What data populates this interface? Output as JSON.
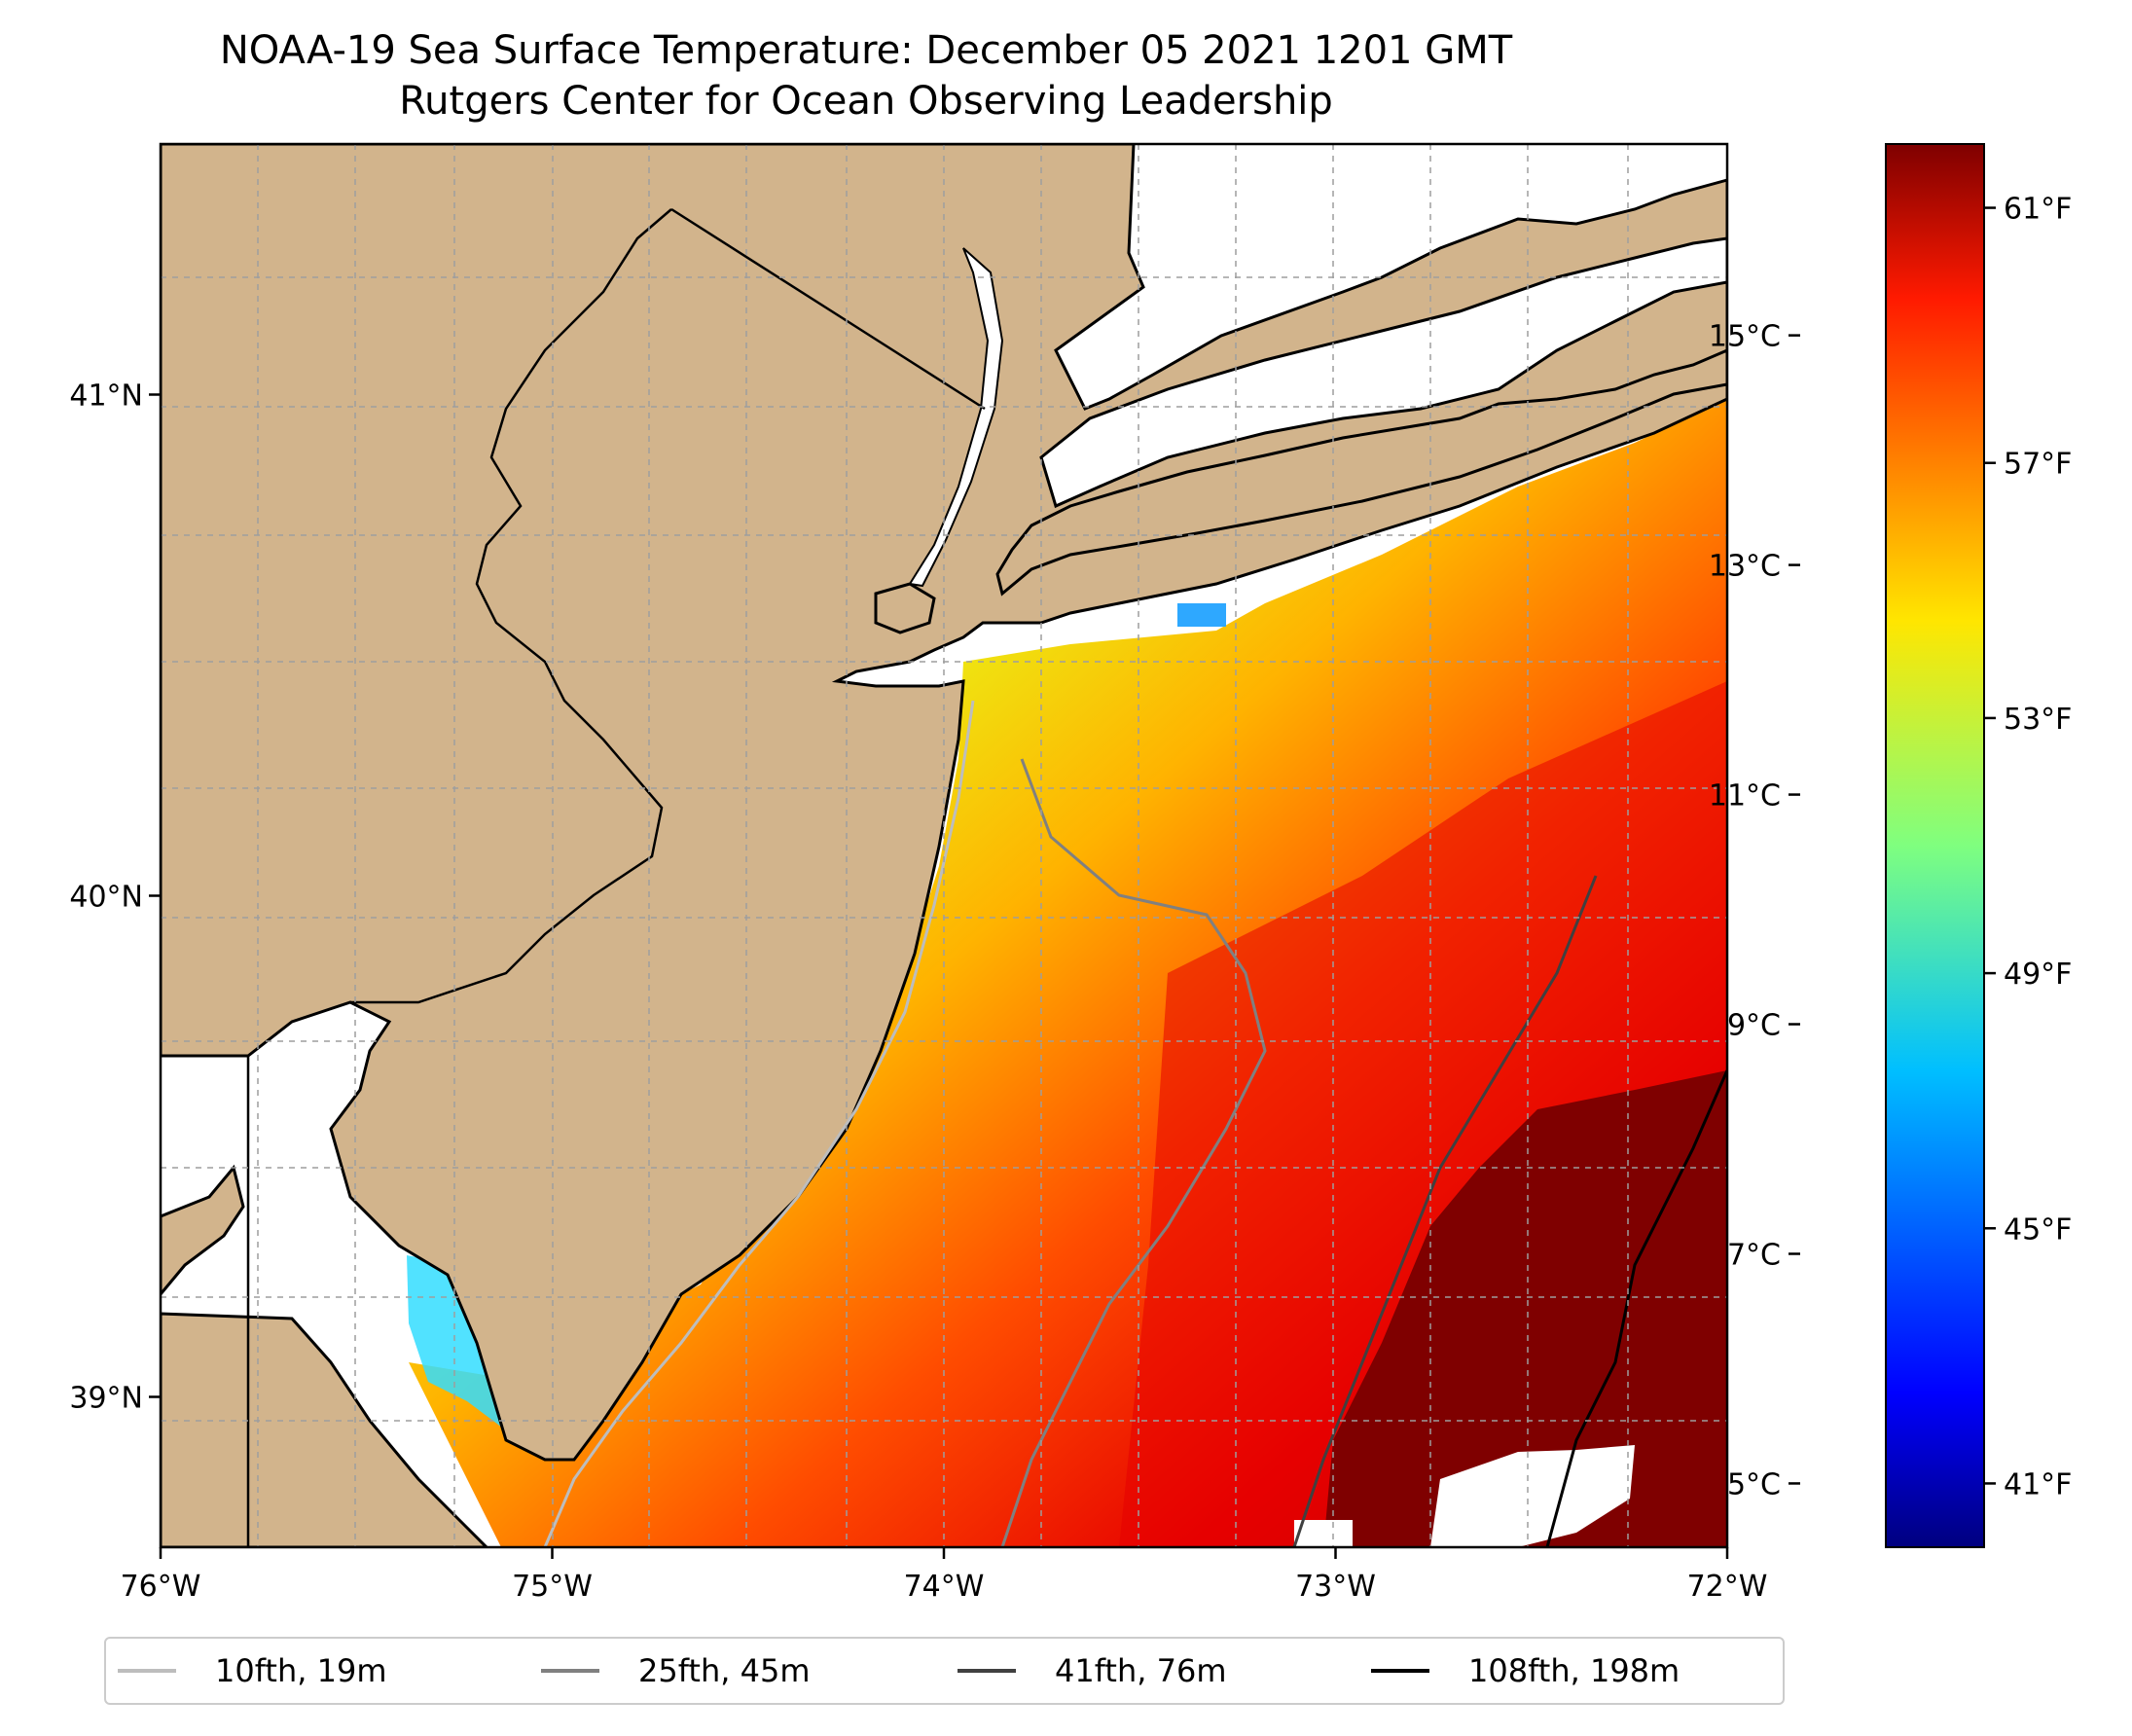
{
  "title_line1": "NOAA-19 Sea Surface Temperature: December 05 2021 1201 GMT",
  "title_line2": "Rutgers Center for Ocean Observing Leadership",
  "map": {
    "lon_range": [
      -76,
      -72
    ],
    "lat_range": [
      38.7,
      41.5
    ],
    "x_ticks": [
      {
        "value": -76,
        "label": "76°W"
      },
      {
        "value": -75,
        "label": "75°W"
      },
      {
        "value": -74,
        "label": "74°W"
      },
      {
        "value": -73,
        "label": "73°W"
      },
      {
        "value": -72,
        "label": "72°W"
      }
    ],
    "y_ticks": [
      {
        "value": 41,
        "label": "41°N"
      },
      {
        "value": 40,
        "label": "40°N"
      },
      {
        "value": 39,
        "label": "39°N"
      }
    ],
    "land_color": "#d2b48c",
    "grid": "dashed",
    "regions": [
      "New Jersey",
      "New York",
      "Pennsylvania",
      "Delaware",
      "Long Island",
      "Long Island Sound",
      "Delaware Bay",
      "Hudson River"
    ]
  },
  "colorbar": {
    "colormap": "jet",
    "celsius_ticks": [
      {
        "value": 15,
        "label": "15°C"
      },
      {
        "value": 13,
        "label": "13°C"
      },
      {
        "value": 11,
        "label": "11°C"
      },
      {
        "value": 9,
        "label": "9°C"
      },
      {
        "value": 7,
        "label": "7°C"
      },
      {
        "value": 5,
        "label": "5°C"
      }
    ],
    "fahrenheit_ticks": [
      {
        "value": 61,
        "label": "61°F"
      },
      {
        "value": 57,
        "label": "57°F"
      },
      {
        "value": 53,
        "label": "53°F"
      },
      {
        "value": 49,
        "label": "49°F"
      },
      {
        "value": 45,
        "label": "45°F"
      },
      {
        "value": 41,
        "label": "41°F"
      }
    ]
  },
  "legend": [
    {
      "label": "10fth, 19m",
      "color": "#bdbdbd"
    },
    {
      "label": "25fth, 45m",
      "color": "#808080"
    },
    {
      "label": "41fth, 76m",
      "color": "#404040"
    },
    {
      "label": "108fth, 198m",
      "color": "#000000"
    }
  ]
}
